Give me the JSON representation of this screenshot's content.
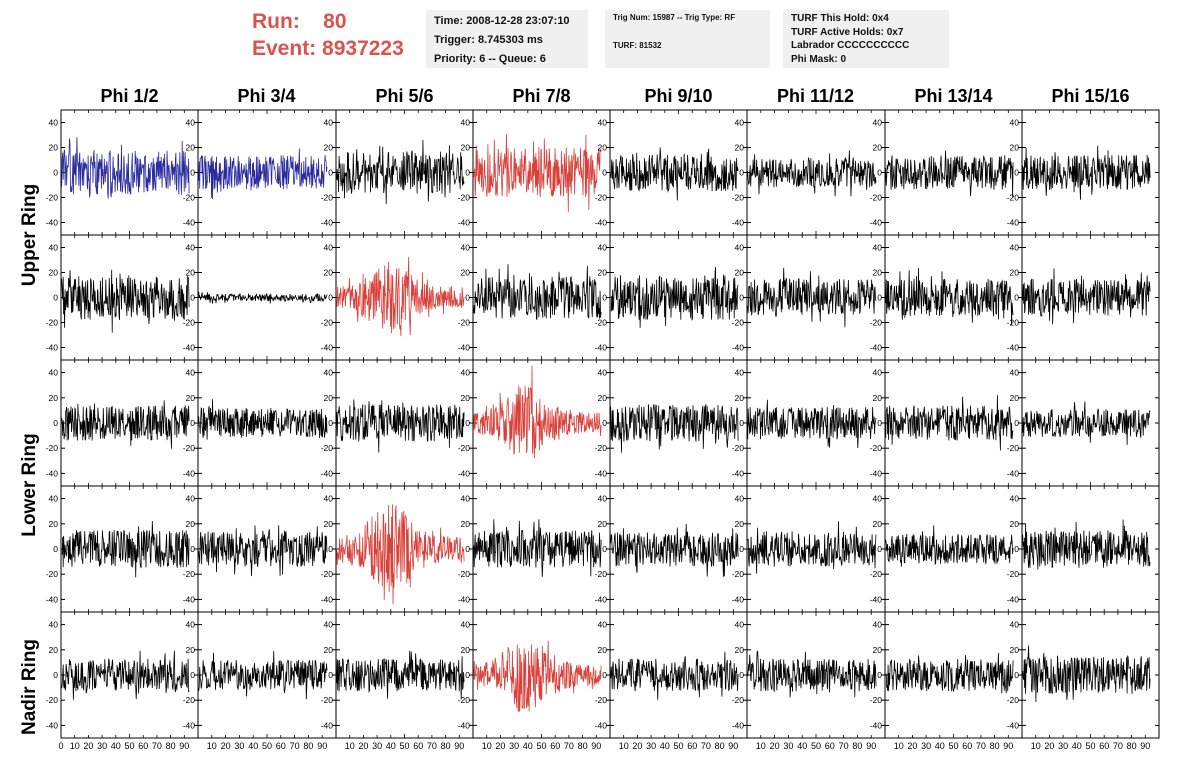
{
  "header": {
    "run_label": "Run:",
    "run_value": "80",
    "event_label": "Event:",
    "event_value": "8937223"
  },
  "info": {
    "time": "Time: 2008-12-28 23:07:10",
    "trigger": "Trigger: 8.745303 ms",
    "priority": "Priority: 6 -- Queue: 6",
    "trig_num": "Trig Num: 15987 -- Trig Type: RF",
    "turf": "TURF: 81532",
    "turf_this_hold": "TURF This Hold: 0x4",
    "turf_active_holds": "TURF Active Holds: 0x7",
    "labrador": "Labrador CCCCCCCCCC",
    "phi_mask": "Phi Mask: 0"
  },
  "colors": {
    "blue": "#2b2b9e",
    "red": "#d9403a",
    "black": "#000000",
    "header_red": "#d9534f"
  },
  "chart_data": {
    "type": "line",
    "columns": [
      "Phi 1/2",
      "Phi 3/4",
      "Phi 5/6",
      "Phi 7/8",
      "Phi 9/10",
      "Phi 11/12",
      "Phi 13/14",
      "Phi 15/16"
    ],
    "ring_labels": [
      "Upper Ring",
      "Lower Ring",
      "Nadir Ring"
    ],
    "panel_rows": 5,
    "ylim": [
      -50,
      50
    ],
    "y_ticks": [
      40,
      20,
      0,
      -20,
      -40
    ],
    "xlim": [
      0,
      100
    ],
    "x_ticks": [
      0,
      10,
      20,
      30,
      40,
      50,
      60,
      70,
      80,
      90,
      100
    ],
    "panels": [
      [
        {
          "color": "blue",
          "amp": 18,
          "env": "flat",
          "seed": 11
        },
        {
          "color": "blue",
          "amp": 14,
          "env": "flat",
          "seed": 12
        },
        {
          "color": "black",
          "amp": 17,
          "env": "flat",
          "seed": 13
        },
        {
          "color": "red",
          "amp": 20,
          "env": "flat",
          "seed": 14
        },
        {
          "color": "black",
          "amp": 15,
          "env": "flat",
          "seed": 15
        },
        {
          "color": "black",
          "amp": 12,
          "env": "flat",
          "seed": 16
        },
        {
          "color": "black",
          "amp": 14,
          "env": "flat",
          "seed": 17
        },
        {
          "color": "black",
          "amp": 14,
          "env": "flat",
          "seed": 18
        }
      ],
      [
        {
          "color": "black",
          "amp": 18,
          "env": "flat",
          "seed": 21
        },
        {
          "color": "black",
          "amp": 3,
          "env": "flat",
          "seed": 22
        },
        {
          "color": "red",
          "amp": 24,
          "env": "bump",
          "seed": 23
        },
        {
          "color": "black",
          "amp": 17,
          "env": "flat",
          "seed": 24
        },
        {
          "color": "black",
          "amp": 18,
          "env": "flat",
          "seed": 25
        },
        {
          "color": "black",
          "amp": 15,
          "env": "flat",
          "seed": 26
        },
        {
          "color": "black",
          "amp": 15,
          "env": "flat",
          "seed": 27
        },
        {
          "color": "black",
          "amp": 15,
          "env": "flat",
          "seed": 28
        }
      ],
      [
        {
          "color": "black",
          "amp": 14,
          "env": "flat",
          "seed": 31
        },
        {
          "color": "black",
          "amp": 12,
          "env": "flat",
          "seed": 32
        },
        {
          "color": "black",
          "amp": 15,
          "env": "flat",
          "seed": 33
        },
        {
          "color": "red",
          "amp": 24,
          "env": "bump",
          "seed": 34
        },
        {
          "color": "black",
          "amp": 15,
          "env": "flat",
          "seed": 35
        },
        {
          "color": "black",
          "amp": 13,
          "env": "flat",
          "seed": 36
        },
        {
          "color": "black",
          "amp": 14,
          "env": "flat",
          "seed": 37
        },
        {
          "color": "black",
          "amp": 11,
          "env": "flat",
          "seed": 38
        }
      ],
      [
        {
          "color": "black",
          "amp": 15,
          "env": "flat",
          "seed": 41
        },
        {
          "color": "black",
          "amp": 14,
          "env": "flat",
          "seed": 42
        },
        {
          "color": "red",
          "amp": 30,
          "env": "bump",
          "seed": 43
        },
        {
          "color": "black",
          "amp": 15,
          "env": "flat",
          "seed": 44
        },
        {
          "color": "black",
          "amp": 14,
          "env": "flat",
          "seed": 45
        },
        {
          "color": "black",
          "amp": 14,
          "env": "flat",
          "seed": 46
        },
        {
          "color": "black",
          "amp": 12,
          "env": "flat",
          "seed": 47
        },
        {
          "color": "black",
          "amp": 15,
          "env": "flat",
          "seed": 48
        }
      ],
      [
        {
          "color": "black",
          "amp": 13,
          "env": "flat",
          "seed": 51
        },
        {
          "color": "black",
          "amp": 12,
          "env": "flat",
          "seed": 52
        },
        {
          "color": "black",
          "amp": 13,
          "env": "flat",
          "seed": 53
        },
        {
          "color": "red",
          "amp": 26,
          "env": "bump",
          "seed": 54
        },
        {
          "color": "black",
          "amp": 13,
          "env": "flat",
          "seed": 55
        },
        {
          "color": "black",
          "amp": 13,
          "env": "flat",
          "seed": 56
        },
        {
          "color": "black",
          "amp": 13,
          "env": "flat",
          "seed": 57
        },
        {
          "color": "black",
          "amp": 15,
          "env": "flat",
          "seed": 58
        }
      ]
    ]
  }
}
